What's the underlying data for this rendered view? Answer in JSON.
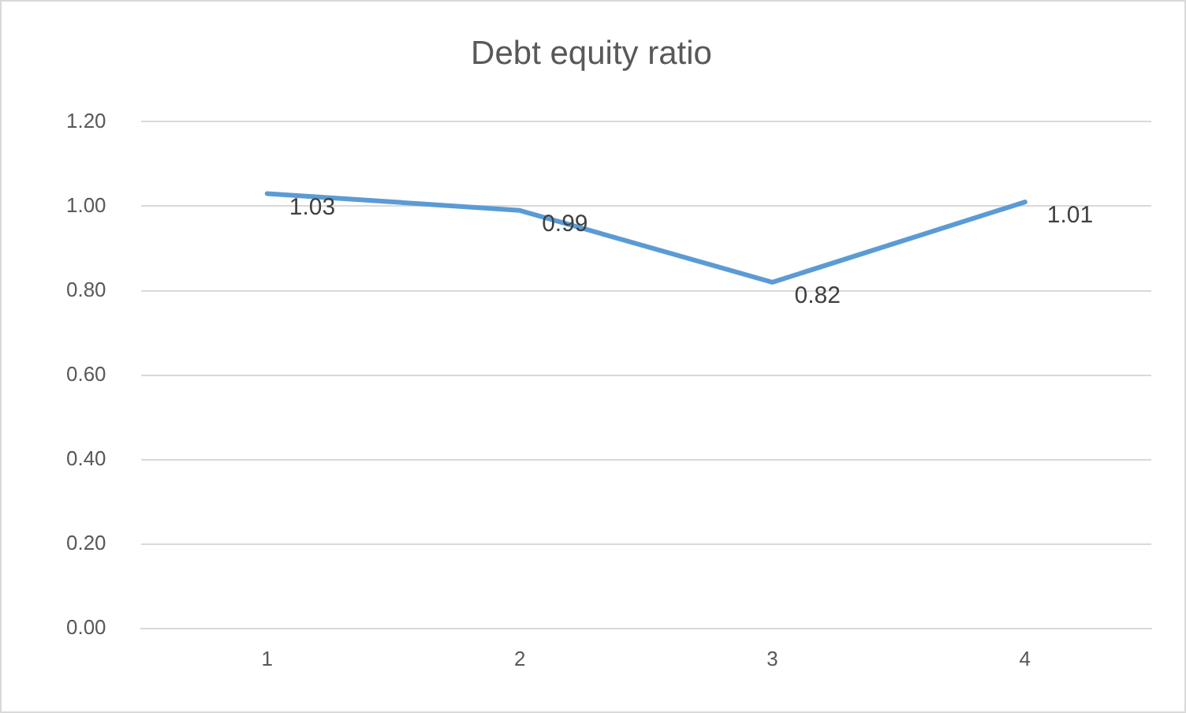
{
  "chart_data": {
    "type": "line",
    "title": "Debt equity ratio",
    "categories": [
      "1",
      "2",
      "3",
      "4"
    ],
    "series": [
      {
        "color": "#5b9bd5",
        "values": [
          1.03,
          0.99,
          0.82,
          1.01
        ]
      }
    ],
    "ylim": [
      0,
      1.2
    ],
    "yticks": [
      {
        "value": 0,
        "label": "0.00"
      },
      {
        "value": 0.2,
        "label": "0.20"
      },
      {
        "value": 0.4,
        "label": "0.40"
      },
      {
        "value": 0.6,
        "label": "0.60"
      },
      {
        "value": 0.8,
        "label": "0.80"
      },
      {
        "value": 1,
        "label": "1.00"
      },
      {
        "value": 1.2,
        "label": "1.20"
      }
    ],
    "grid": "y",
    "data_labels": true,
    "marker": "none",
    "line_style": "solid",
    "legend": false
  }
}
